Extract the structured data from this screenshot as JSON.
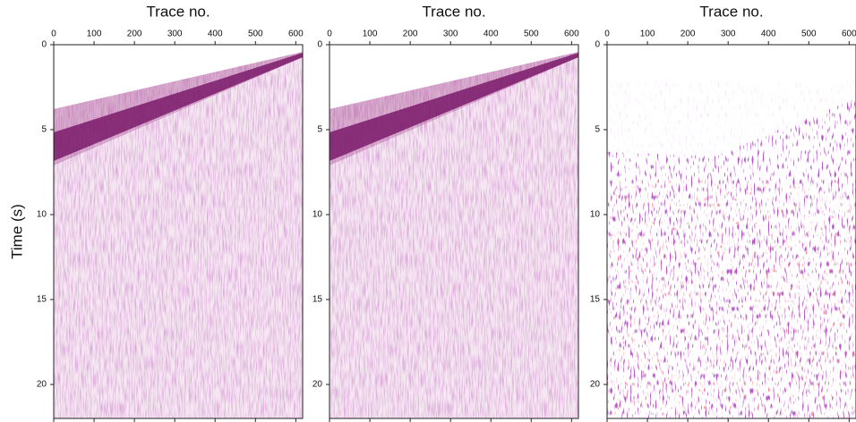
{
  "chart_data": [
    {
      "type": "image",
      "xlabel": "Trace no.",
      "ylabel": "Time (s)",
      "xlim": [
        0,
        617
      ],
      "ylim": [
        0,
        22
      ],
      "xticks": [
        0,
        100,
        200,
        300,
        400,
        500,
        600
      ],
      "yticks": [
        0,
        5,
        10,
        15,
        20
      ]
    },
    {
      "type": "image",
      "xlabel": "Trace no.",
      "xlim": [
        0,
        617
      ],
      "ylim": [
        0,
        22
      ],
      "xticks": [
        0,
        100,
        200,
        300,
        400,
        500,
        600
      ],
      "yticks": [
        0,
        5,
        10,
        15,
        20
      ]
    },
    {
      "type": "image",
      "xlabel": "Trace no.",
      "xlim": [
        0,
        617
      ],
      "ylim": [
        0,
        22
      ],
      "xticks": [
        0,
        100,
        200,
        300,
        400,
        500,
        600
      ],
      "yticks": [
        0,
        5,
        10,
        15,
        20
      ]
    }
  ]
}
